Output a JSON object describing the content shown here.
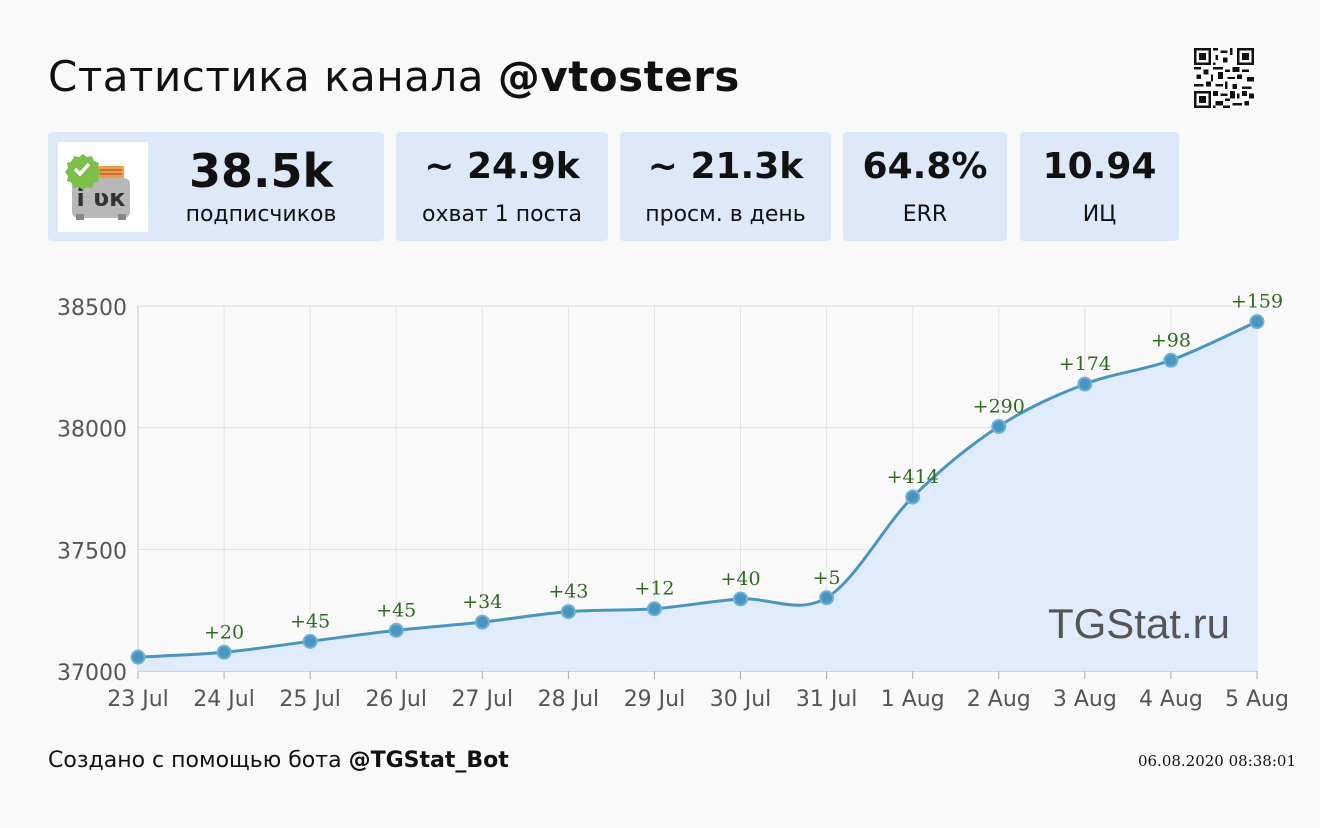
{
  "header": {
    "title_prefix": "Статистика канала ",
    "channel": "@vtosters"
  },
  "stats": [
    {
      "value": "38.5k",
      "label": "подписчиков"
    },
    {
      "value": "~ 24.9k",
      "label": "охват 1 поста"
    },
    {
      "value": "~ 21.3k",
      "label": "просм. в день"
    },
    {
      "value": "64.8%",
      "label": "ERR"
    },
    {
      "value": "10.94",
      "label": "ИЦ"
    }
  ],
  "avatar": {
    "glyph": "і ʋк"
  },
  "watermark": "TGStat.ru",
  "footer": {
    "prefix": "Создано с помощью бота ",
    "bot": "@TGStat_Bot",
    "timestamp": "06.08.2020 08:38:01"
  },
  "colors": {
    "line": "#4a95c0",
    "fill": "#deebfb",
    "delta": "#2e6b1f",
    "card": "#dde8f8"
  },
  "chart_data": {
    "type": "area",
    "title": "",
    "xlabel": "",
    "ylabel": "",
    "categories": [
      "23 Jul",
      "24 Jul",
      "25 Jul",
      "26 Jul",
      "27 Jul",
      "28 Jul",
      "29 Jul",
      "30 Jul",
      "31 Jul",
      "1 Aug",
      "2 Aug",
      "3 Aug",
      "4 Aug",
      "5 Aug"
    ],
    "series": [
      {
        "values": [
          37057,
          37077,
          37122,
          37167,
          37201,
          37244,
          37256,
          37296,
          37301,
          37715,
          38005,
          38179,
          38277,
          38436
        ],
        "labels": [
          "",
          "+20",
          "+45",
          "+45",
          "+34",
          "+43",
          "+12",
          "+40",
          "+5",
          "+414",
          "+290",
          "+174",
          "+98",
          "+159"
        ]
      }
    ],
    "yticks": [
      37000,
      37500,
      38000,
      38500
    ],
    "ylim": [
      37000,
      38500
    ],
    "grid": true,
    "legend": "none"
  }
}
